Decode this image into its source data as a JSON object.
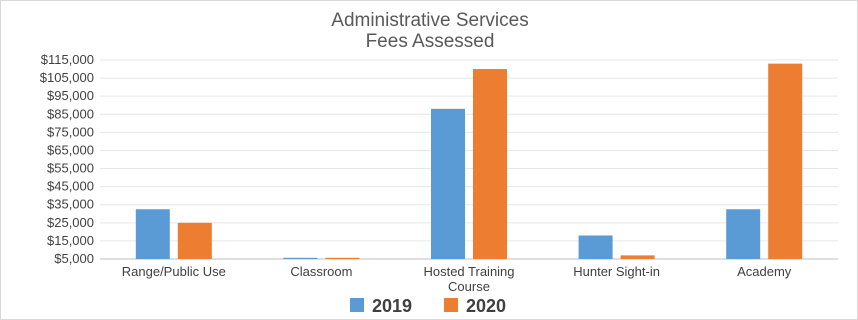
{
  "chart_data": {
    "type": "bar",
    "title_lines": [
      "Administrative Services",
      "Fees Assessed"
    ],
    "categories": [
      [
        "Range/Public Use"
      ],
      [
        "Classroom"
      ],
      [
        "Hosted Training",
        "Course"
      ],
      [
        "Hunter Sight-in"
      ],
      [
        "Academy"
      ]
    ],
    "series": [
      {
        "name": "2019",
        "color": "#5B9BD5",
        "values": [
          32500,
          5200,
          88000,
          18000,
          32500
        ]
      },
      {
        "name": "2020",
        "color": "#ED7D31",
        "values": [
          25000,
          5200,
          110000,
          7000,
          113000
        ]
      }
    ],
    "y_ticks": [
      "$5,000",
      "$15,000",
      "$25,000",
      "$35,000",
      "$45,000",
      "$55,000",
      "$65,000",
      "$75,000",
      "$85,000",
      "$95,000",
      "$105,000",
      "$115,000"
    ],
    "ylim": [
      5000,
      115000
    ],
    "xlabel": "",
    "ylabel": "",
    "grid": true,
    "legend_position": "bottom"
  }
}
